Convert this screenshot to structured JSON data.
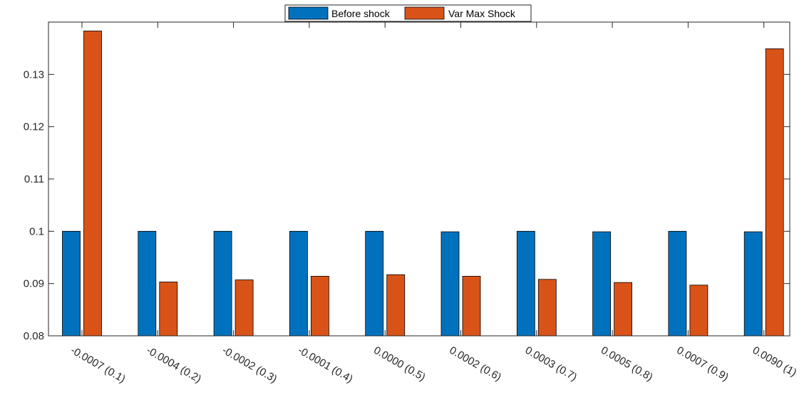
{
  "chart_data": {
    "type": "bar",
    "title": "",
    "xlabel": "",
    "ylabel": "",
    "categories": [
      "-0.0007 (0.1)",
      "-0.0004 (0.2)",
      "-0.0002 (0.3)",
      "-0.0001 (0.4)",
      "0.0000 (0.5)",
      "0.0002 (0.6)",
      "0.0003 (0.7)",
      "0.0005 (0.8)",
      "0.0007 (0.9)",
      "0.0090 (1)"
    ],
    "series": [
      {
        "name": "Before shock",
        "color": "#0072BD",
        "values": [
          0.1,
          0.1,
          0.1,
          0.1,
          0.1,
          0.0999,
          0.1,
          0.0999,
          0.1,
          0.0999
        ]
      },
      {
        "name": "Var Max Shock",
        "color": "#D95319",
        "values": [
          0.1383,
          0.0903,
          0.0907,
          0.0914,
          0.0917,
          0.0914,
          0.0908,
          0.0902,
          0.0897,
          0.1349
        ]
      }
    ],
    "ylim": [
      0.08,
      0.14
    ],
    "yticks": [
      0.08,
      0.09,
      0.1,
      0.11,
      0.12,
      0.13
    ],
    "ytick_labels": [
      "0.08",
      "0.09",
      "0.1",
      "0.11",
      "0.12",
      "0.13"
    ],
    "grid": false,
    "legend_position": "top-center"
  }
}
